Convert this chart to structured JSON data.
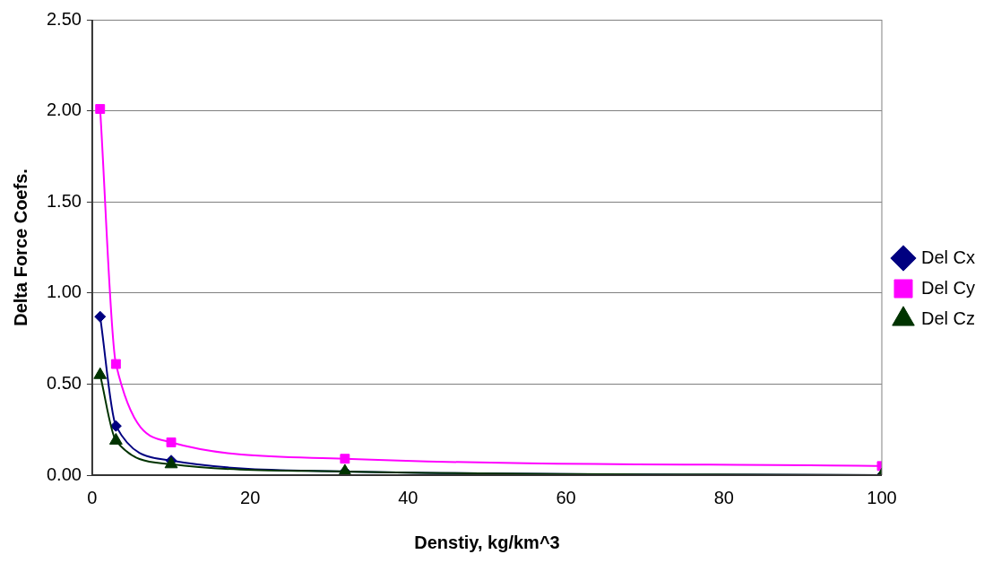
{
  "chart_data": {
    "type": "line",
    "xlabel": "Denstiy, kg/km^3",
    "ylabel": "Delta Force Coefs.",
    "x": [
      1,
      3,
      10,
      32,
      100
    ],
    "series": [
      {
        "name": "Del Cx",
        "color": "#000080",
        "marker": "diamond",
        "values": [
          0.87,
          0.27,
          0.08,
          0.02,
          0.0
        ]
      },
      {
        "name": "Del Cy",
        "color": "#ff00ff",
        "marker": "square",
        "values": [
          2.01,
          0.61,
          0.18,
          0.09,
          0.05
        ]
      },
      {
        "name": "Del Cz",
        "color": "#003300",
        "marker": "triangle",
        "values": [
          0.55,
          0.19,
          0.06,
          0.02,
          0.0
        ]
      }
    ],
    "xlim": [
      0,
      100
    ],
    "xticks": [
      0,
      20,
      40,
      60,
      80,
      100
    ],
    "ylim": [
      0,
      2.5
    ],
    "yticks": [
      {
        "value": 0,
        "label": "0.00"
      },
      {
        "value": 0.5,
        "label": "0.50"
      },
      {
        "value": 1,
        "label": "1.00"
      },
      {
        "value": 1.5,
        "label": "1.50"
      },
      {
        "value": 2,
        "label": "2.00"
      },
      {
        "value": 2.5,
        "label": "2.50"
      }
    ],
    "grid": "y",
    "legend": "right",
    "line_style": "solid"
  }
}
